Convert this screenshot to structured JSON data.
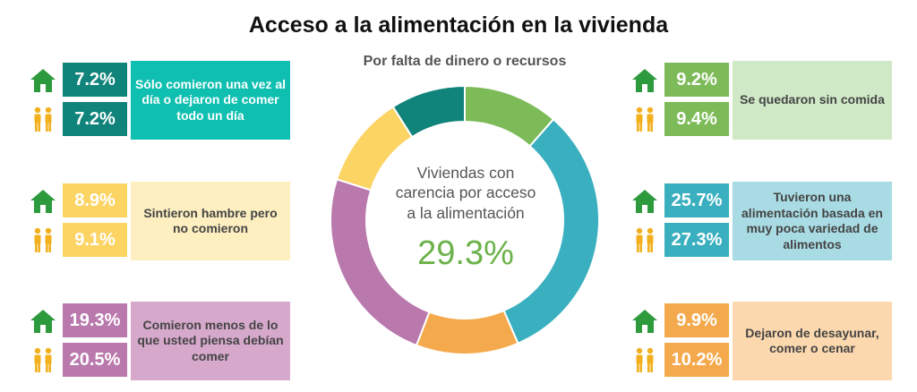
{
  "title": "Acceso a la alimentación en la vivienda",
  "subtitle": "Por falta de dinero o recursos",
  "center": {
    "text_lines": [
      "Viviendas con",
      "carencia por acceso",
      "a la alimentación"
    ],
    "value": "29.3%"
  },
  "icons": {
    "household": "house-icon",
    "persons": "people-icon",
    "household_color": "#2e9a3e",
    "persons_color": "#f2b01e"
  },
  "panels": [
    {
      "id": "una-vez",
      "label": "Sólo comieron una vez al día o dejaron de comer todo un día",
      "household": "7.2%",
      "persons": "7.2%",
      "value_color": "#10837b",
      "label_bg": "#0fbfb0"
    },
    {
      "id": "hambre",
      "label": "Sintieron hambre pero no comieron",
      "household": "8.9%",
      "persons": "9.1%",
      "value_color": "#fcd464",
      "label_bg": "#fdefc0"
    },
    {
      "id": "menos",
      "label": "Comieron menos de lo que usted piensa debían comer",
      "household": "19.3%",
      "persons": "20.5%",
      "value_color": "#b979ad",
      "label_bg": "#d6a9cc"
    },
    {
      "id": "sin-comida",
      "label": "Se quedaron sin comida",
      "household": "9.2%",
      "persons": "9.4%",
      "value_color": "#7dbb59",
      "label_bg": "#cfe8c6"
    },
    {
      "id": "poca-variedad",
      "label": "Tuvieron una alimentación basada en muy poca variedad de alimentos",
      "household": "25.7%",
      "persons": "27.3%",
      "value_color": "#3aafbf",
      "label_bg": "#a8dbe3"
    },
    {
      "id": "desayunar",
      "label": "Dejaron de desayunar, comer o cenar",
      "household": "9.9%",
      "persons": "10.2%",
      "value_color": "#f5a94d",
      "label_bg": "#fcd8ae"
    }
  ],
  "chart_data": {
    "type": "pie",
    "title": "Acceso a la alimentación en la vivienda",
    "subtitle": "Por falta de dinero o recursos",
    "donut": true,
    "center_value": 29.3,
    "slices": [
      {
        "label": "Se quedaron sin comida",
        "value": 9.2,
        "color": "#7dbb59"
      },
      {
        "label": "Tuvieron una alimentación basada en muy poca variedad de alimentos",
        "value": 25.7,
        "color": "#3aafbf"
      },
      {
        "label": "Dejaron de desayunar, comer o cenar",
        "value": 9.9,
        "color": "#f5a94d"
      },
      {
        "label": "Comieron menos de lo que usted piensa debían comer",
        "value": 19.3,
        "color": "#b979ad"
      },
      {
        "label": "Sintieron hambre pero no comieron",
        "value": 8.9,
        "color": "#fcd464"
      },
      {
        "label": "Sólo comieron una vez al día o dejaron de comer todo un día",
        "value": 7.2,
        "color": "#10837b"
      }
    ]
  }
}
